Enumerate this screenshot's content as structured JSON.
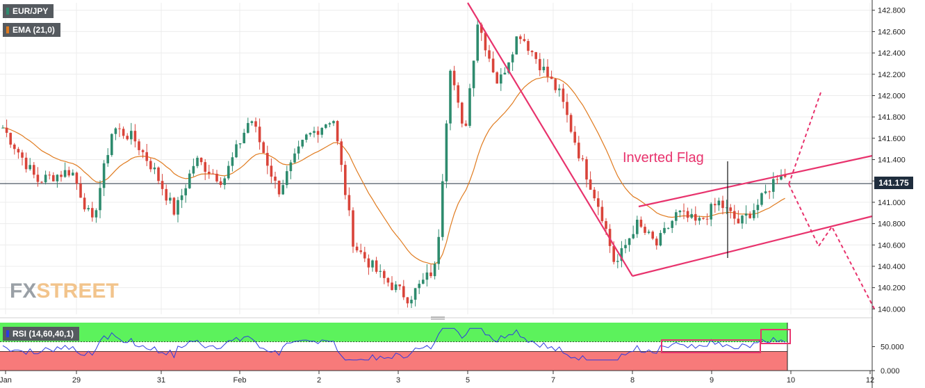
{
  "chart_data": [
    {
      "type": "candlestick",
      "symbol": "EUR/JPY",
      "indicator_label": "EMA (21,0)",
      "indicator_color": "#e07b1f",
      "current_price_label": "141.175",
      "current_price": 141.175,
      "y_ticks": [
        "142.800",
        "142.600",
        "142.400",
        "142.200",
        "142.000",
        "141.800",
        "141.600",
        "141.400",
        "141.200",
        "141.000",
        "140.800",
        "140.600",
        "140.400",
        "140.200",
        "140.000"
      ],
      "ylim": [
        139.95,
        142.87
      ],
      "x_tick_labels": [
        "Jan",
        "29",
        "31",
        "Feb",
        "2",
        "3",
        "5",
        "7",
        "8",
        "9",
        "10",
        "12"
      ],
      "annotation": "Inverted Flag",
      "up_color": "#2e8b6e",
      "down_color": "#d9443a",
      "pattern_color": "#e8336d",
      "closes_key_points": [
        {
          "x": 0,
          "price": 141.7
        },
        {
          "x": 0.5,
          "price": 141.2
        },
        {
          "x": 1,
          "price": 141.3
        },
        {
          "x": 1.3,
          "price": 140.8
        },
        {
          "x": 1.6,
          "price": 141.7
        },
        {
          "x": 1.9,
          "price": 141.6
        },
        {
          "x": 2.2,
          "price": 141.3
        },
        {
          "x": 2.5,
          "price": 140.9
        },
        {
          "x": 2.8,
          "price": 141.4
        },
        {
          "x": 3.2,
          "price": 141.2
        },
        {
          "x": 3.6,
          "price": 141.8
        },
        {
          "x": 4.0,
          "price": 141.1
        },
        {
          "x": 4.4,
          "price": 141.6
        },
        {
          "x": 4.8,
          "price": 141.8
        },
        {
          "x": 5.1,
          "price": 140.6
        },
        {
          "x": 5.5,
          "price": 140.3
        },
        {
          "x": 5.9,
          "price": 140.1
        },
        {
          "x": 6.3,
          "price": 140.4
        },
        {
          "x": 6.5,
          "price": 142.3
        },
        {
          "x": 6.7,
          "price": 141.6
        },
        {
          "x": 6.9,
          "price": 142.7
        },
        {
          "x": 7.2,
          "price": 142.1
        },
        {
          "x": 7.5,
          "price": 142.6
        },
        {
          "x": 7.8,
          "price": 142.3
        },
        {
          "x": 8.1,
          "price": 142.0
        },
        {
          "x": 8.4,
          "price": 141.4
        },
        {
          "x": 8.7,
          "price": 140.9
        },
        {
          "x": 8.9,
          "price": 140.4
        },
        {
          "x": 9.2,
          "price": 140.8
        },
        {
          "x": 9.5,
          "price": 140.6
        },
        {
          "x": 9.8,
          "price": 140.9
        },
        {
          "x": 10.1,
          "price": 140.8
        },
        {
          "x": 10.4,
          "price": 141.0
        },
        {
          "x": 10.7,
          "price": 140.8
        },
        {
          "x": 11.0,
          "price": 141.0
        },
        {
          "x": 11.3,
          "price": 141.3
        },
        {
          "x": 11.4,
          "price": 141.2
        }
      ]
    },
    {
      "type": "line",
      "indicator_label": "RSI (14,60,40,1)",
      "y_ticks": [
        "50.000",
        "0.000"
      ],
      "ylim": [
        0,
        100
      ],
      "upper_band": 60,
      "lower_band": 40,
      "band_upper_color": "#5cf25c",
      "band_lower_color": "#f77a7a",
      "line_color": "#2d3be0"
    }
  ]
}
